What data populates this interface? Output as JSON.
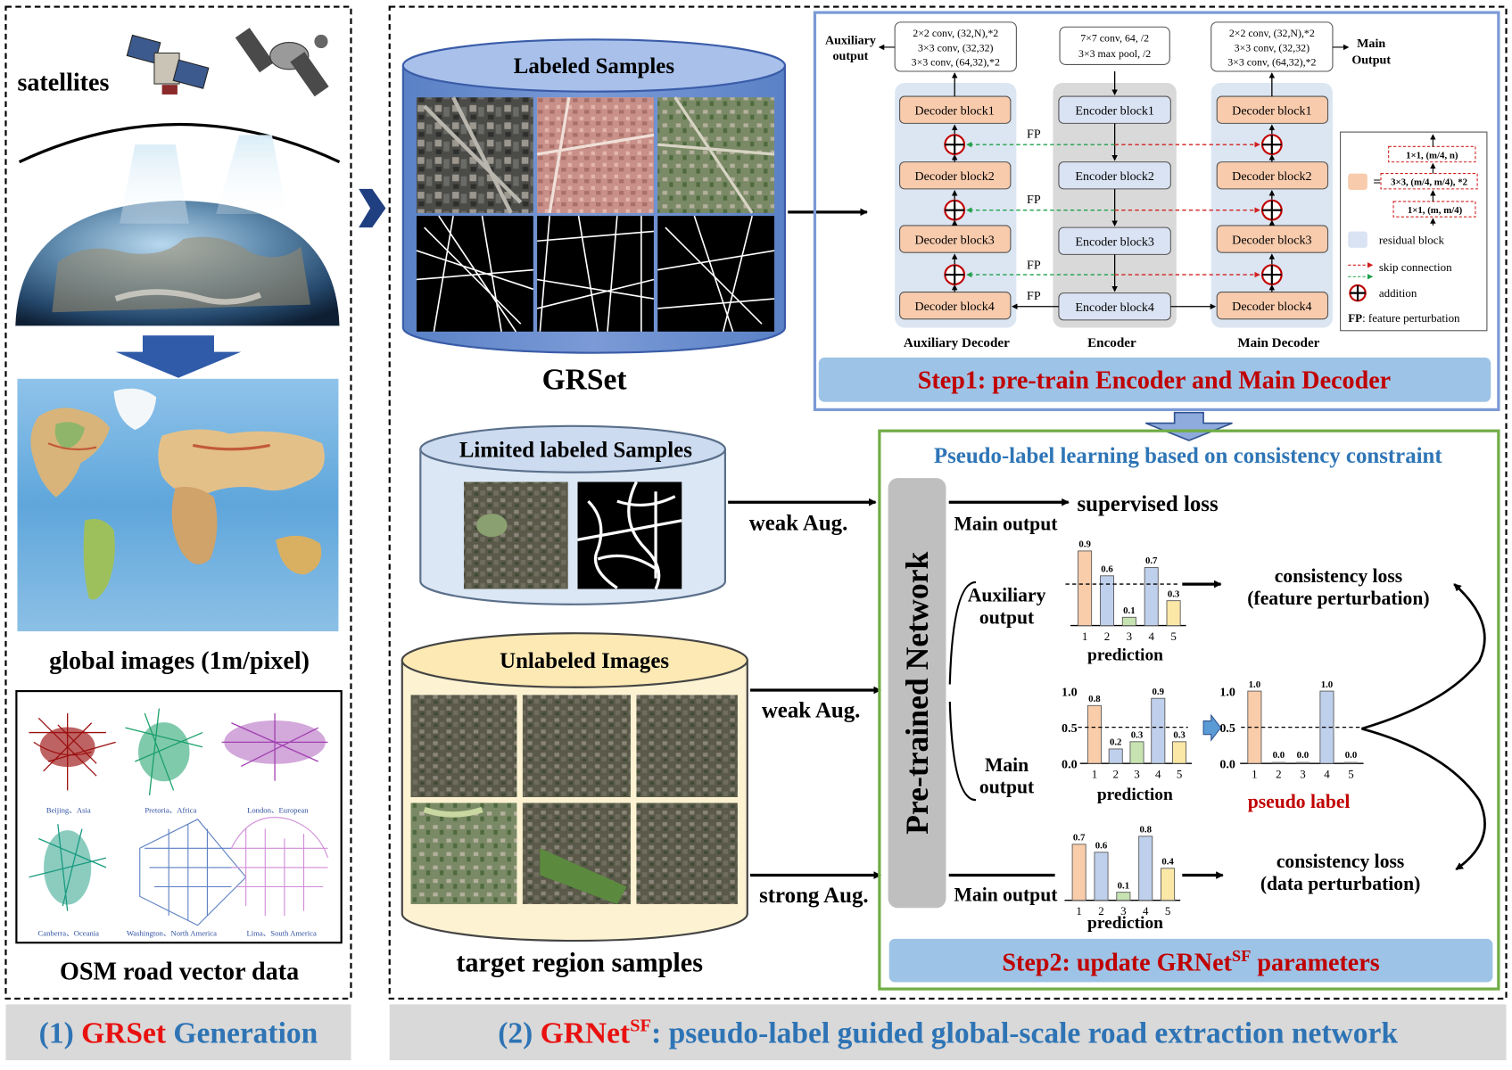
{
  "panel1": {
    "satellites_label": "satellites",
    "global_images_label": "global images (1m/pixel)",
    "osm_label": "OSM road vector data",
    "cities": [
      "Beijing、Asia",
      "Pretoria、Africa",
      "London、European",
      "Canberra、Oceania",
      "Washington、North America",
      "Lima、South America"
    ],
    "caption": {
      "prefix": "(1) ",
      "red": "GRSet",
      "suffix": " Generation"
    }
  },
  "panel2": {
    "labeled_samples": "Labeled Samples",
    "grset": "GRSet",
    "limited_samples": "Limited labeled Samples",
    "unlabeled_images": "Unlabeled Images",
    "target_region": "target region samples",
    "weak_aug": "weak Aug.",
    "strong_aug": "strong Aug.",
    "caption": {
      "prefix": "(2) ",
      "red": "GRNet",
      "sup": "SF",
      "suffix": ": pseudo-label guided global-scale road extraction network"
    }
  },
  "step1": {
    "aux_spec": [
      "2×2 conv, (32,N),*2",
      "3×3 conv, (32,32)",
      "3×3 conv, (64,32),*2"
    ],
    "enc_spec": [
      "7×7 conv, 64, /2",
      "3×3 max pool, /2"
    ],
    "main_spec": [
      "2×2 conv, (32,N),*2",
      "3×3 conv, (32,32)",
      "3×3 conv, (64,32),*2"
    ],
    "aux_output": "Auxiliary output",
    "main_output": "Main Output",
    "decoder_blocks": [
      "Decoder block1",
      "Decoder block2",
      "Decoder block3",
      "Decoder block4"
    ],
    "encoder_blocks": [
      "Encoder block1",
      "Encoder  block2",
      "Encoder  block3",
      "Encoder  block4"
    ],
    "fp": "FP",
    "aux_decoder_label": "Auxiliary Decoder",
    "encoder_label": "Encoder",
    "main_decoder_label": "Main Decoder",
    "legend": {
      "conv1": "1×1, (m/4, n)",
      "conv2": "3×3, (m/4, m/4), *2",
      "conv3": "1×1, (m, m/4)",
      "residual": "residual block",
      "skip": "skip connection",
      "addition": "addition",
      "fp_key": "FP",
      "fp_desc": ": feature perturbation"
    },
    "title": "Step1: pre-train Encoder and Main Decoder"
  },
  "step2": {
    "header": "Pseudo-label learning based on consistency constraint",
    "network": "Pre-trained Network",
    "supervised_loss": "supervised loss",
    "main_output": "Main output",
    "aux_output": "Auxiliary output",
    "consistency_fp": "consistency loss",
    "consistency_fp2": "(feature perturbation)",
    "consistency_dp": "consistency loss",
    "consistency_dp2": "(data perturbation)",
    "prediction": "prediction",
    "pseudo_label": "pseudo label",
    "title_prefix": "Step2: update  GRNet",
    "title_sup": "SF",
    "title_suffix": " parameters"
  },
  "chart_data": [
    {
      "type": "bar",
      "title": "Auxiliary output",
      "xlabel": "prediction",
      "categories": [
        "1",
        "2",
        "3",
        "4",
        "5"
      ],
      "values": [
        0.9,
        0.6,
        0.1,
        0.7,
        0.3
      ],
      "threshold": 0.5
    },
    {
      "type": "bar",
      "title": "Main output",
      "xlabel": "prediction",
      "categories": [
        "1",
        "2",
        "3",
        "4",
        "5"
      ],
      "values": [
        0.8,
        0.2,
        0.3,
        0.9,
        0.3
      ],
      "yticks": [
        "1.0",
        "0.5",
        "0.0"
      ],
      "threshold": 0.5
    },
    {
      "type": "bar",
      "title": "pseudo label",
      "xlabel": "pseudo label",
      "categories": [
        "1",
        "2",
        "3",
        "4",
        "5"
      ],
      "values": [
        1.0,
        0.0,
        0.0,
        1.0,
        0.0
      ],
      "yticks": [
        "1.0",
        "0.5",
        "0.0"
      ],
      "threshold": 0.5
    },
    {
      "type": "bar",
      "title": "Main output (strong Aug.)",
      "xlabel": "prediction",
      "categories": [
        "1",
        "2",
        "3",
        "4",
        "5"
      ],
      "values": [
        0.7,
        0.6,
        0.1,
        0.8,
        0.4
      ]
    }
  ],
  "colors": {
    "bar_colors": [
      "#f9ccaa",
      "#bfd0ec",
      "#c7e3b1",
      "#bfd0ec",
      "#fbe7a6"
    ],
    "caption_blue": "#2e74b5",
    "caption_red": "#e8110f",
    "step_red": "#c00000",
    "header_blue": "#2e75b6"
  }
}
